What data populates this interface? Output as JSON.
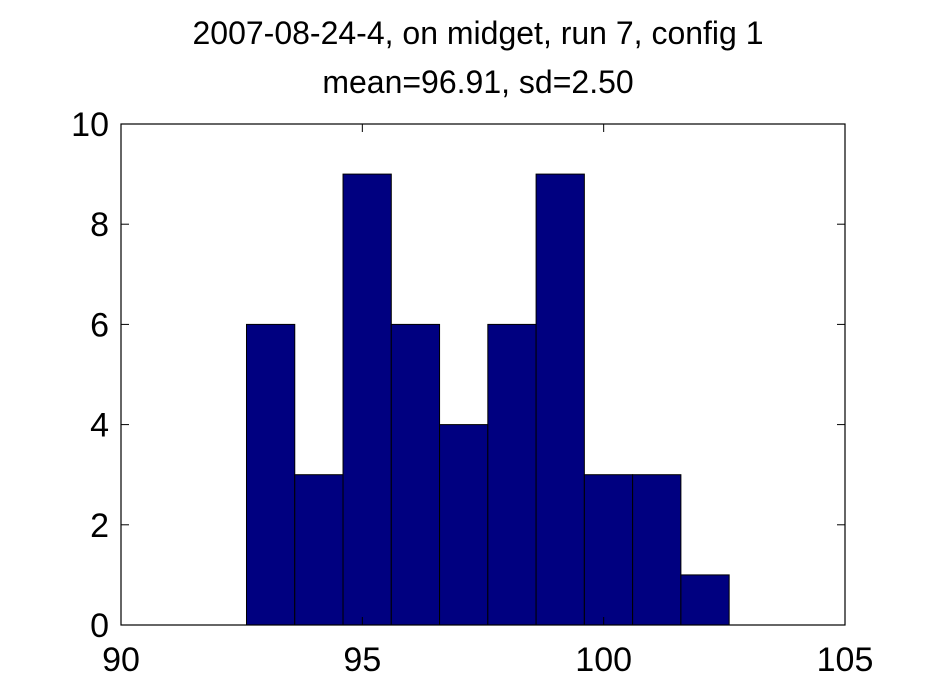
{
  "chart_data": {
    "type": "bar",
    "title": "2007-08-24-4, on midget, run 7, config 1",
    "subtitle": "mean=96.91, sd=2.50",
    "xlabel": "",
    "ylabel": "",
    "xlim": [
      90,
      105
    ],
    "ylim": [
      0,
      10
    ],
    "xticks": [
      90,
      95,
      100,
      105
    ],
    "yticks": [
      0,
      2,
      4,
      6,
      8,
      10
    ],
    "bin_width": 1,
    "bin_centers": [
      93.1,
      94.1,
      95.1,
      96.1,
      97.1,
      98.1,
      99.1,
      100.1,
      101.1,
      102.1
    ],
    "values": [
      6,
      3,
      9,
      6,
      4,
      6,
      9,
      3,
      3,
      1
    ],
    "bar_color": "#000080",
    "grid": false,
    "legend": "none"
  }
}
